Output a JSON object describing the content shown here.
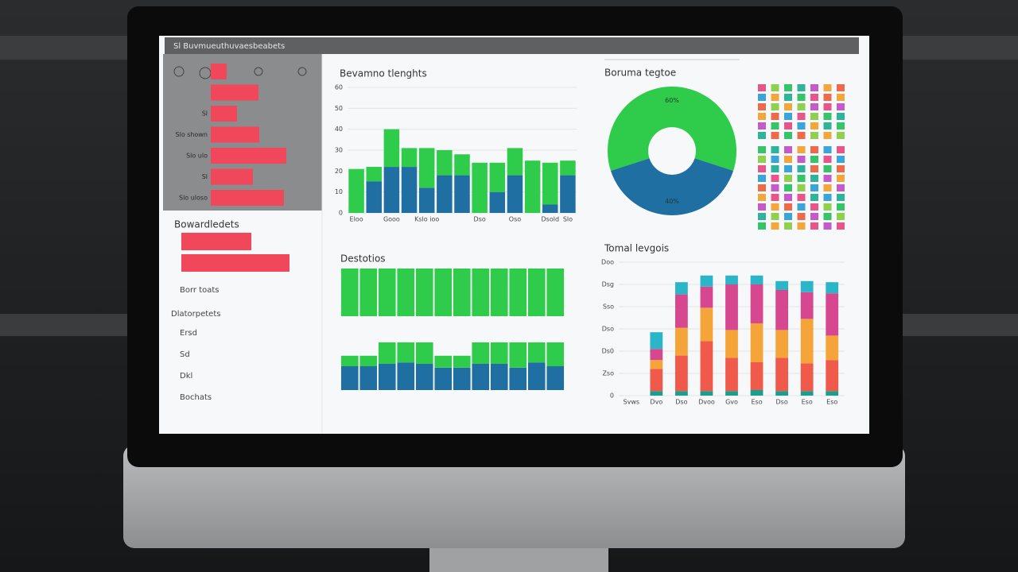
{
  "header": {
    "title": "Sl Buvmueuthuvaesbeabets"
  },
  "sidebar": {
    "section": "Borr toats",
    "list_title": "Dlatorpetets",
    "items": [
      "Ersd",
      "Sd",
      "Dkl",
      "Bochats"
    ]
  },
  "chart_data": [
    {
      "type": "hbar",
      "categories": [
        null,
        null,
        "Sl",
        "Slo shown",
        "Slo ulo",
        "Sl",
        "Slo uloso"
      ],
      "values": [
        20,
        60,
        33,
        61,
        95,
        53,
        92
      ],
      "color": "#f0485a"
    },
    {
      "type": "hbar",
      "title": "Bowardledets",
      "categories": [
        null,
        null
      ],
      "values": [
        88,
        136
      ],
      "color": "#f0485a"
    },
    {
      "type": "bar",
      "title": "Bevamno tlenghts",
      "stacked": true,
      "categories": [
        "Eloo",
        null,
        "Gooo",
        null,
        "Kslo ioo",
        null,
        null,
        "Dso",
        null,
        "Oso",
        null,
        "Dsold",
        "Slo"
      ],
      "series": [
        {
          "color": "#1f6fa3",
          "values": [
            0,
            15,
            22,
            22,
            12,
            18,
            18,
            0,
            10,
            18,
            0,
            4,
            18
          ]
        },
        {
          "color": "#2ecc4a",
          "values": [
            21,
            7,
            18,
            9,
            19,
            12,
            10,
            24,
            14,
            13,
            25,
            20,
            7
          ]
        }
      ],
      "ylim": [
        0,
        60
      ],
      "yticks": [
        0,
        10,
        20,
        30,
        40,
        50,
        60
      ],
      "grid": true
    },
    {
      "type": "pie",
      "title": "Boruma tegtoe",
      "donut": true,
      "values": [
        60,
        40
      ],
      "value_labels": [
        "60%",
        "40%"
      ],
      "colors": [
        "#2ecc4a",
        "#1f6fa3"
      ]
    },
    {
      "type": "bar",
      "title": "Destotios",
      "stacked": true,
      "categories": [
        null,
        null,
        null,
        null,
        null,
        null,
        null,
        null,
        null,
        null,
        null,
        null
      ],
      "series": [
        {
          "color": "#2ecc4a",
          "values": [
            100,
            100,
            100,
            100,
            100,
            100,
            100,
            100,
            100,
            100,
            100,
            100
          ]
        }
      ],
      "ylim": [
        0,
        100
      ]
    },
    {
      "type": "bar",
      "stacked": true,
      "categories": [
        null,
        null,
        null,
        null,
        null,
        null,
        null,
        null,
        null,
        null,
        null,
        null
      ],
      "series": [
        {
          "color": "#1f6fa3",
          "values": [
            50,
            50,
            55,
            58,
            55,
            47,
            47,
            55,
            55,
            47,
            58,
            50
          ]
        },
        {
          "color": "#2ecc4a",
          "values": [
            22,
            22,
            45,
            42,
            45,
            25,
            25,
            45,
            45,
            53,
            42,
            50
          ]
        }
      ],
      "ylim": [
        0,
        100
      ]
    },
    {
      "type": "bar",
      "title": "Tomal levgois",
      "stacked": true,
      "categories": [
        "Svws",
        "Dvo",
        "Dso",
        "Dvoo",
        "Gvo",
        "Eso",
        "Dso",
        "Eso",
        "Eso"
      ],
      "series": [
        {
          "color": "#1a9e8f",
          "values": [
            null,
            4,
            4,
            4,
            4,
            5,
            4,
            4,
            4
          ]
        },
        {
          "color": "#ef5a4a",
          "values": [
            null,
            20,
            32,
            45,
            30,
            25,
            30,
            25,
            28
          ]
        },
        {
          "color": "#f5a43a",
          "values": [
            null,
            8,
            25,
            30,
            25,
            35,
            25,
            40,
            22
          ]
        },
        {
          "color": "#d6478f",
          "values": [
            null,
            10,
            30,
            19,
            41,
            35,
            36,
            24,
            38
          ]
        },
        {
          "color": "#2bb5c8",
          "values": [
            null,
            15,
            11,
            10,
            8,
            8,
            8,
            10,
            10
          ]
        }
      ],
      "ylim": [
        0,
        120
      ],
      "yticks": [
        0,
        {
          "value": 20,
          "label": "Zso"
        },
        {
          "value": 40,
          "label": "Ds0"
        },
        {
          "value": 60,
          "label": "Dso"
        },
        {
          "value": 80,
          "label": "Sso"
        },
        {
          "value": 100,
          "label": "Dsg"
        },
        {
          "value": 120,
          "label": "Doo"
        }
      ]
    }
  ]
}
